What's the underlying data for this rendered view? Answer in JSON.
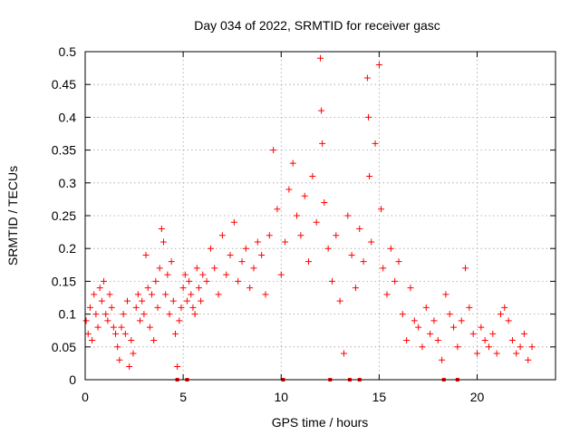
{
  "chart_data": {
    "type": "scatter",
    "title": "Day 034 of 2022, SRMTID for receiver gasc",
    "xlabel": "GPS time / hours",
    "ylabel": "SRMTID / TECUs",
    "xlim": [
      0,
      24
    ],
    "ylim": [
      0,
      0.5
    ],
    "xticks": [
      0,
      5,
      10,
      15,
      20
    ],
    "xtick_labels": [
      "0",
      "5",
      "10",
      "15",
      "20"
    ],
    "yticks": [
      0,
      0.05,
      0.1,
      0.15,
      0.2,
      0.25,
      0.3,
      0.35,
      0.4,
      0.45,
      0.5
    ],
    "ytick_labels": [
      "0",
      "0.05",
      "0.1",
      "0.15",
      "0.2",
      "0.25",
      "0.3",
      "0.35",
      "0.4",
      "0.45",
      "0.5"
    ],
    "grid": true,
    "marker": "+",
    "color": "#ff0000",
    "series": [
      {
        "name": "SRMTID",
        "points": [
          [
            0.05,
            0.09
          ],
          [
            0.15,
            0.07
          ],
          [
            0.25,
            0.11
          ],
          [
            0.35,
            0.06
          ],
          [
            0.45,
            0.13
          ],
          [
            0.55,
            0.1
          ],
          [
            0.65,
            0.08
          ],
          [
            0.75,
            0.14
          ],
          [
            0.85,
            0.12
          ],
          [
            0.95,
            0.15
          ],
          [
            1.05,
            0.1
          ],
          [
            1.15,
            0.09
          ],
          [
            1.25,
            0.13
          ],
          [
            1.35,
            0.11
          ],
          [
            1.45,
            0.08
          ],
          [
            1.55,
            0.07
          ],
          [
            1.65,
            0.05
          ],
          [
            1.75,
            0.03
          ],
          [
            1.85,
            0.08
          ],
          [
            1.95,
            0.1
          ],
          [
            2.05,
            0.07
          ],
          [
            2.15,
            0.12
          ],
          [
            2.25,
            0.02
          ],
          [
            2.35,
            0.06
          ],
          [
            2.45,
            0.04
          ],
          [
            2.6,
            0.11
          ],
          [
            2.7,
            0.13
          ],
          [
            2.8,
            0.09
          ],
          [
            2.9,
            0.12
          ],
          [
            3.0,
            0.1
          ],
          [
            3.1,
            0.19
          ],
          [
            3.2,
            0.14
          ],
          [
            3.3,
            0.08
          ],
          [
            3.4,
            0.13
          ],
          [
            3.5,
            0.06
          ],
          [
            3.6,
            0.15
          ],
          [
            3.7,
            0.11
          ],
          [
            3.8,
            0.17
          ],
          [
            3.9,
            0.23
          ],
          [
            4.0,
            0.21
          ],
          [
            4.1,
            0.13
          ],
          [
            4.2,
            0.16
          ],
          [
            4.3,
            0.1
          ],
          [
            4.4,
            0.18
          ],
          [
            4.5,
            0.12
          ],
          [
            4.6,
            0.07
          ],
          [
            4.7,
            0.02
          ],
          [
            4.8,
            0.09
          ],
          [
            4.9,
            0.11
          ],
          [
            5.0,
            0.14
          ],
          [
            5.1,
            0.16
          ],
          [
            5.2,
            0.12
          ],
          [
            5.3,
            0.15
          ],
          [
            5.4,
            0.13
          ],
          [
            5.5,
            0.11
          ],
          [
            5.6,
            0.1
          ],
          [
            5.7,
            0.17
          ],
          [
            5.8,
            0.14
          ],
          [
            5.9,
            0.12
          ],
          [
            6.0,
            0.16
          ],
          [
            6.2,
            0.15
          ],
          [
            6.4,
            0.2
          ],
          [
            6.6,
            0.17
          ],
          [
            6.8,
            0.13
          ],
          [
            7.0,
            0.22
          ],
          [
            7.2,
            0.16
          ],
          [
            7.4,
            0.19
          ],
          [
            7.6,
            0.24
          ],
          [
            7.8,
            0.15
          ],
          [
            8.0,
            0.18
          ],
          [
            8.2,
            0.2
          ],
          [
            8.4,
            0.14
          ],
          [
            8.6,
            0.17
          ],
          [
            8.8,
            0.21
          ],
          [
            9.0,
            0.19
          ],
          [
            9.2,
            0.13
          ],
          [
            9.4,
            0.22
          ],
          [
            9.6,
            0.35
          ],
          [
            9.8,
            0.26
          ],
          [
            10.0,
            0.16
          ],
          [
            10.2,
            0.21
          ],
          [
            10.4,
            0.29
          ],
          [
            10.6,
            0.33
          ],
          [
            10.8,
            0.25
          ],
          [
            11.0,
            0.22
          ],
          [
            11.2,
            0.28
          ],
          [
            11.4,
            0.18
          ],
          [
            11.6,
            0.31
          ],
          [
            11.8,
            0.24
          ],
          [
            12.0,
            0.49
          ],
          [
            12.05,
            0.41
          ],
          [
            12.1,
            0.36
          ],
          [
            12.2,
            0.27
          ],
          [
            12.4,
            0.2
          ],
          [
            12.6,
            0.15
          ],
          [
            12.8,
            0.22
          ],
          [
            13.0,
            0.12
          ],
          [
            13.2,
            0.04
          ],
          [
            13.4,
            0.25
          ],
          [
            13.6,
            0.19
          ],
          [
            13.8,
            0.14
          ],
          [
            14.0,
            0.23
          ],
          [
            14.2,
            0.18
          ],
          [
            14.4,
            0.46
          ],
          [
            14.45,
            0.4
          ],
          [
            14.5,
            0.31
          ],
          [
            14.6,
            0.21
          ],
          [
            14.8,
            0.36
          ],
          [
            15.0,
            0.48
          ],
          [
            15.1,
            0.26
          ],
          [
            15.2,
            0.17
          ],
          [
            15.4,
            0.13
          ],
          [
            15.6,
            0.2
          ],
          [
            15.8,
            0.15
          ],
          [
            16.0,
            0.18
          ],
          [
            16.2,
            0.1
          ],
          [
            16.4,
            0.06
          ],
          [
            16.6,
            0.14
          ],
          [
            16.8,
            0.09
          ],
          [
            17.0,
            0.08
          ],
          [
            17.2,
            0.05
          ],
          [
            17.4,
            0.11
          ],
          [
            17.6,
            0.07
          ],
          [
            17.8,
            0.09
          ],
          [
            18.0,
            0.06
          ],
          [
            18.2,
            0.03
          ],
          [
            18.4,
            0.13
          ],
          [
            18.6,
            0.1
          ],
          [
            18.8,
            0.08
          ],
          [
            19.0,
            0.05
          ],
          [
            19.2,
            0.09
          ],
          [
            19.4,
            0.17
          ],
          [
            19.6,
            0.11
          ],
          [
            19.8,
            0.07
          ],
          [
            20.0,
            0.04
          ],
          [
            20.2,
            0.08
          ],
          [
            20.4,
            0.06
          ],
          [
            20.6,
            0.05
          ],
          [
            20.8,
            0.07
          ],
          [
            21.0,
            0.04
          ],
          [
            21.2,
            0.1
          ],
          [
            21.4,
            0.11
          ],
          [
            21.6,
            0.09
          ],
          [
            21.8,
            0.06
          ],
          [
            22.0,
            0.04
          ],
          [
            22.2,
            0.05
          ],
          [
            22.4,
            0.07
          ],
          [
            22.6,
            0.03
          ],
          [
            22.8,
            0.05
          ]
        ]
      }
    ],
    "zero_markers_x": [
      4.7,
      5.2,
      10.1,
      12.5,
      13.5,
      14.0,
      18.3,
      19.0
    ]
  }
}
